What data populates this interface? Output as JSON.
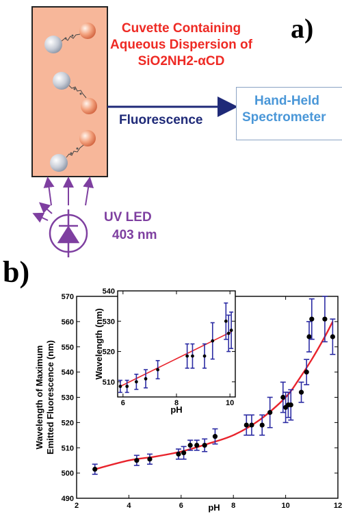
{
  "panel_a": {
    "label": "a)",
    "cuvette_title_lines": [
      "Cuvette Containing",
      "Aqueous Dispersion of",
      "SiO2NH2-αCD"
    ],
    "fluorescence_label": "Fluorescence",
    "spectrometer_lines": [
      "Hand-Held",
      "Spectrometer"
    ],
    "uv_lines": [
      "UV LED",
      "403 nm"
    ],
    "colors": {
      "cuvette_fill": "#f7b79a",
      "title": "#ee2a24",
      "arrow": "#1f2a78",
      "spectrometer": "#4a97d8",
      "uv": "#7e3fa0"
    }
  },
  "panel_b": {
    "label": "b)",
    "chart_data": [
      {
        "type": "scatter",
        "xlabel": "pH",
        "ylabel_lines": [
          "Wavelength of Maximum",
          "Emitted Fluorescence (nm)"
        ],
        "xlim": [
          2,
          12
        ],
        "ylim": [
          490,
          570
        ],
        "xticks": [
          "2",
          "4",
          "6",
          "8",
          "10",
          "12"
        ],
        "yticks": [
          "490",
          "500",
          "510",
          "520",
          "530",
          "540",
          "550",
          "560",
          "570"
        ],
        "points": [
          {
            "x": 2.7,
            "y": 501.5,
            "err": 2
          },
          {
            "x": 4.3,
            "y": 505,
            "err": 2
          },
          {
            "x": 4.8,
            "y": 505.5,
            "err": 2
          },
          {
            "x": 5.9,
            "y": 507.5,
            "err": 2
          },
          {
            "x": 6.1,
            "y": 508,
            "err": 2.5
          },
          {
            "x": 6.35,
            "y": 511,
            "err": 2
          },
          {
            "x": 6.6,
            "y": 511,
            "err": 2
          },
          {
            "x": 6.9,
            "y": 511,
            "err": 2.5
          },
          {
            "x": 7.3,
            "y": 514.5,
            "err": 3
          },
          {
            "x": 8.5,
            "y": 519,
            "err": 4
          },
          {
            "x": 8.7,
            "y": 519,
            "err": 4
          },
          {
            "x": 9.1,
            "y": 519,
            "err": 4
          },
          {
            "x": 9.4,
            "y": 524,
            "err": 6
          },
          {
            "x": 9.9,
            "y": 530,
            "err": 6
          },
          {
            "x": 10.0,
            "y": 526,
            "err": 6
          },
          {
            "x": 10.1,
            "y": 527,
            "err": 5
          },
          {
            "x": 10.2,
            "y": 527,
            "err": 6
          },
          {
            "x": 10.6,
            "y": 532,
            "err": 4
          },
          {
            "x": 10.8,
            "y": 540,
            "err": 5
          },
          {
            "x": 10.9,
            "y": 554,
            "err": 6
          },
          {
            "x": 11.0,
            "y": 561,
            "err": 8
          },
          {
            "x": 11.5,
            "y": 561,
            "err": 9
          },
          {
            "x": 11.8,
            "y": 554,
            "err": 7
          }
        ],
        "fit_curve": {
          "x": [
            2.7,
            4,
            5,
            6,
            7,
            8,
            9,
            10,
            10.5,
            11,
            11.5,
            11.8
          ],
          "y": [
            501.5,
            505,
            506.5,
            508.5,
            511.5,
            515,
            521,
            530,
            537,
            545,
            554,
            560
          ]
        },
        "colors": {
          "marker": "#000000",
          "errorbar": "#2b2ba3",
          "fit": "#e8232c"
        }
      },
      {
        "type": "scatter",
        "xlabel": "pH",
        "ylabel": "Wavelength (nm)",
        "xlim": [
          5.8,
          10.2
        ],
        "ylim": [
          505,
          540
        ],
        "xticks": [
          "6",
          "8",
          "10"
        ],
        "yticks": [
          "510",
          "520",
          "530",
          "540"
        ],
        "points": [
          {
            "x": 5.9,
            "y": 508.5,
            "err": 2
          },
          {
            "x": 6.15,
            "y": 508.5,
            "err": 2
          },
          {
            "x": 6.5,
            "y": 510,
            "err": 2.5
          },
          {
            "x": 6.85,
            "y": 511,
            "err": 3
          },
          {
            "x": 7.3,
            "y": 514,
            "err": 3
          },
          {
            "x": 8.4,
            "y": 518.5,
            "err": 4
          },
          {
            "x": 8.6,
            "y": 518.5,
            "err": 4
          },
          {
            "x": 9.05,
            "y": 518.5,
            "err": 4
          },
          {
            "x": 9.35,
            "y": 523.5,
            "err": 6
          },
          {
            "x": 9.85,
            "y": 530,
            "err": 6
          },
          {
            "x": 9.95,
            "y": 526,
            "err": 6
          },
          {
            "x": 10.05,
            "y": 527,
            "err": 6
          }
        ],
        "fit_curve": {
          "x": [
            5.9,
            10.05
          ],
          "y": [
            508.5,
            526.5
          ]
        },
        "colors": {
          "marker": "#000000",
          "errorbar": "#2b2ba3",
          "fit": "#e8232c"
        }
      }
    ]
  }
}
